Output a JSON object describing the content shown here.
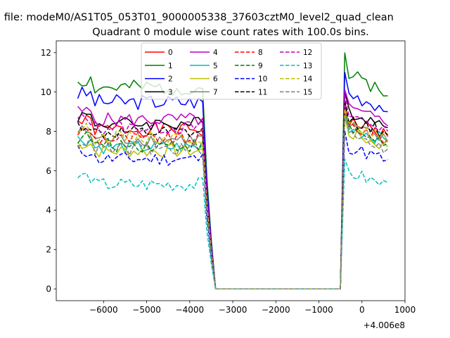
{
  "chart_data": {
    "type": "line",
    "suptitle": "n file: modeM0/AS1T05_053T01_9000005338_37603cztM0_level2_quad_clean",
    "title": "Quadrant 0 module wise count rates with 100.0s bins.",
    "x_offset_label": "+4.006e8",
    "xlabel": "",
    "ylabel": "",
    "xlim": [
      -7100,
      1000
    ],
    "ylim": [
      -0.6,
      12.6
    ],
    "x_ticks": [
      -6000,
      -5000,
      -4000,
      -3000,
      -2000,
      -1000,
      0,
      1000
    ],
    "x_tick_labels": [
      "−6000",
      "−5000",
      "−4000",
      "−3000",
      "−2000",
      "−1000",
      "0",
      "1000"
    ],
    "y_ticks": [
      0,
      2,
      4,
      6,
      8,
      10,
      12
    ],
    "y_tick_labels": [
      "0",
      "2",
      "4",
      "6",
      "8",
      "10",
      "12"
    ],
    "grid": false,
    "legend_position": "top-center",
    "legend_columns": 4,
    "x_segments": [
      {
        "start": -6600,
        "step": 100,
        "count": 32
      },
      {
        "start": -3400,
        "step": 100,
        "count": 30
      },
      {
        "start": -500,
        "step": 100,
        "count": 12
      }
    ],
    "series": [
      {
        "name": "0",
        "color": "#ff0000",
        "dash": false,
        "base": 8.1,
        "post": 8.6,
        "amp": 0.35,
        "seed": 1
      },
      {
        "name": "1",
        "color": "#008000",
        "dash": false,
        "base": 10.2,
        "post": 10.9,
        "amp": 0.4,
        "seed": 2
      },
      {
        "name": "2",
        "color": "#0000ff",
        "dash": false,
        "base": 9.5,
        "post": 10.0,
        "amp": 0.4,
        "seed": 3
      },
      {
        "name": "3",
        "color": "#000000",
        "dash": false,
        "base": 8.4,
        "post": 9.1,
        "amp": 0.35,
        "seed": 4
      },
      {
        "name": "4",
        "color": "#bf00bf",
        "dash": false,
        "base": 8.6,
        "post": 9.2,
        "amp": 0.35,
        "seed": 5
      },
      {
        "name": "5",
        "color": "#00bfbf",
        "dash": false,
        "base": 7.2,
        "post": 8.3,
        "amp": 0.35,
        "seed": 6
      },
      {
        "name": "6",
        "color": "#bfbf00",
        "dash": false,
        "base": 7.0,
        "post": 8.0,
        "amp": 0.35,
        "seed": 7
      },
      {
        "name": "7",
        "color": "#808080",
        "dash": false,
        "base": 7.6,
        "post": 8.3,
        "amp": 0.35,
        "seed": 8
      },
      {
        "name": "8",
        "color": "#ff0000",
        "dash": true,
        "base": 7.6,
        "post": 8.4,
        "amp": 0.35,
        "seed": 9
      },
      {
        "name": "9",
        "color": "#008000",
        "dash": true,
        "base": 7.3,
        "post": 8.2,
        "amp": 0.35,
        "seed": 10
      },
      {
        "name": "10",
        "color": "#0000ff",
        "dash": true,
        "base": 6.6,
        "post": 7.3,
        "amp": 0.35,
        "seed": 11
      },
      {
        "name": "11",
        "color": "#000000",
        "dash": true,
        "base": 7.9,
        "post": 8.7,
        "amp": 0.35,
        "seed": 12
      },
      {
        "name": "12",
        "color": "#bf00bf",
        "dash": true,
        "base": 8.2,
        "post": 8.9,
        "amp": 0.35,
        "seed": 13
      },
      {
        "name": "13",
        "color": "#00bfbf",
        "dash": true,
        "base": 5.3,
        "post": 6.0,
        "amp": 0.35,
        "seed": 14
      },
      {
        "name": "14",
        "color": "#bfbf00",
        "dash": true,
        "base": 7.7,
        "post": 8.3,
        "amp": 0.35,
        "seed": 15
      },
      {
        "name": "15",
        "color": "#808080",
        "dash": true,
        "base": 7.1,
        "post": 7.9,
        "amp": 0.35,
        "seed": 16
      }
    ]
  }
}
